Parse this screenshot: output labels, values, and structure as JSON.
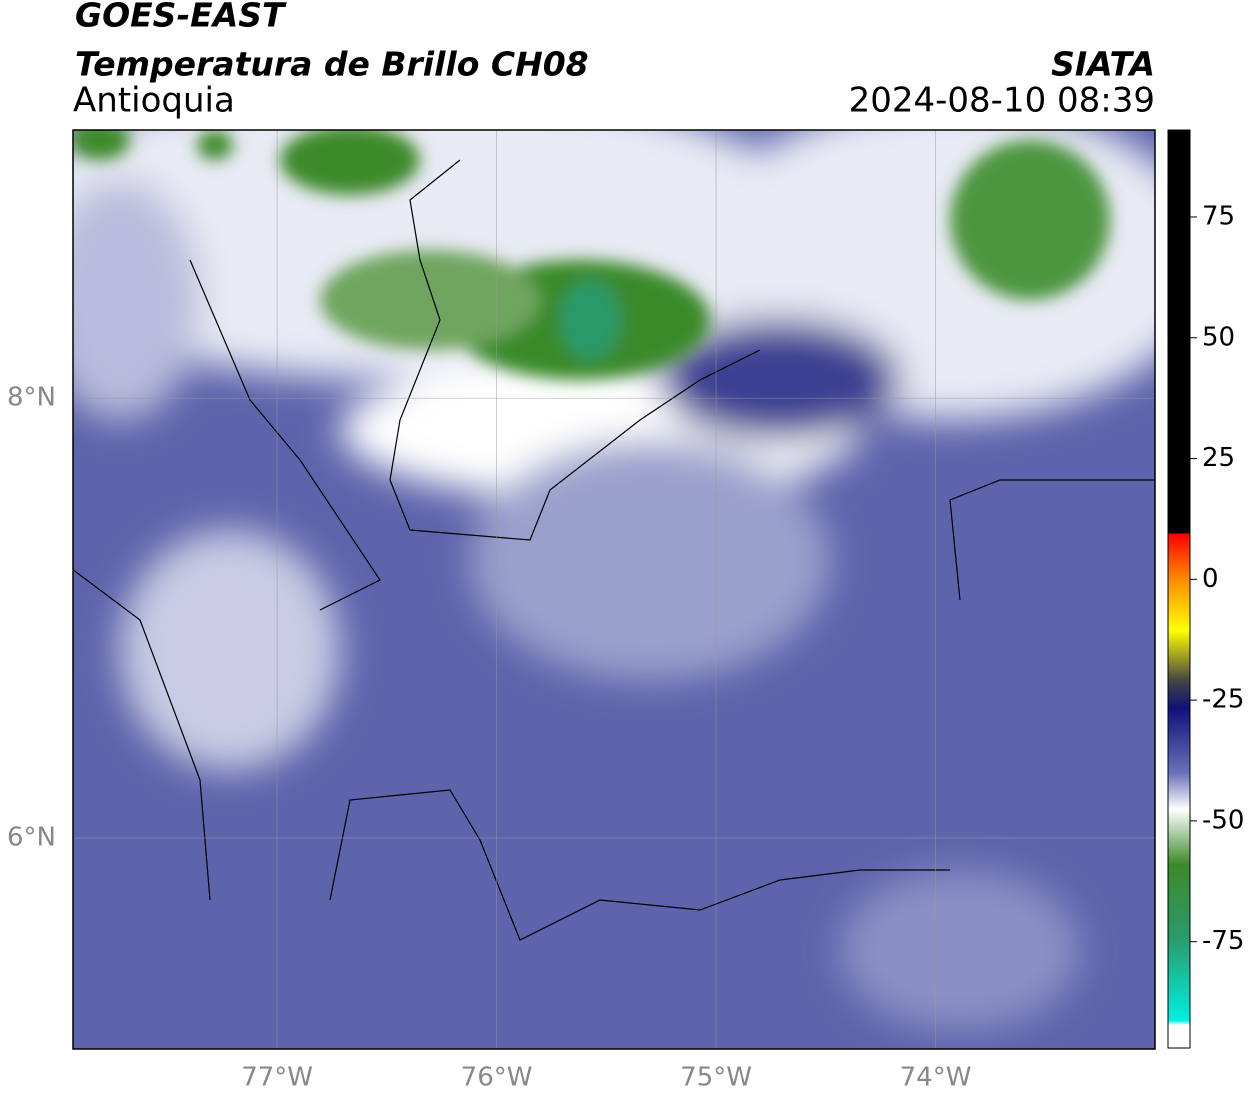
{
  "header": {
    "title": "GOES-EAST",
    "subtitle": "Temperatura de Brillo CH08",
    "region": "Antioquia",
    "source": "SIATA",
    "datetime": "2024-08-10 08:39"
  },
  "map": {
    "xlim": [
      -77.93,
      -73.0
    ],
    "ylim": [
      5.04,
      9.22
    ],
    "xticks": [
      {
        "value": -77,
        "label": "77°W"
      },
      {
        "value": -76,
        "label": "76°W"
      },
      {
        "value": -75,
        "label": "75°W"
      },
      {
        "value": -74,
        "label": "74°W"
      }
    ],
    "yticks": [
      {
        "value": 6,
        "label": "6°N"
      },
      {
        "value": 8,
        "label": "8°N"
      }
    ],
    "grid": true
  },
  "colorbar": {
    "lim": [
      -97,
      93
    ],
    "ticks": [
      {
        "value": -75,
        "label": "-75"
      },
      {
        "value": -50,
        "label": "-50"
      },
      {
        "value": -25,
        "label": "-25"
      },
      0,
      25,
      50,
      75
    ]
  }
}
